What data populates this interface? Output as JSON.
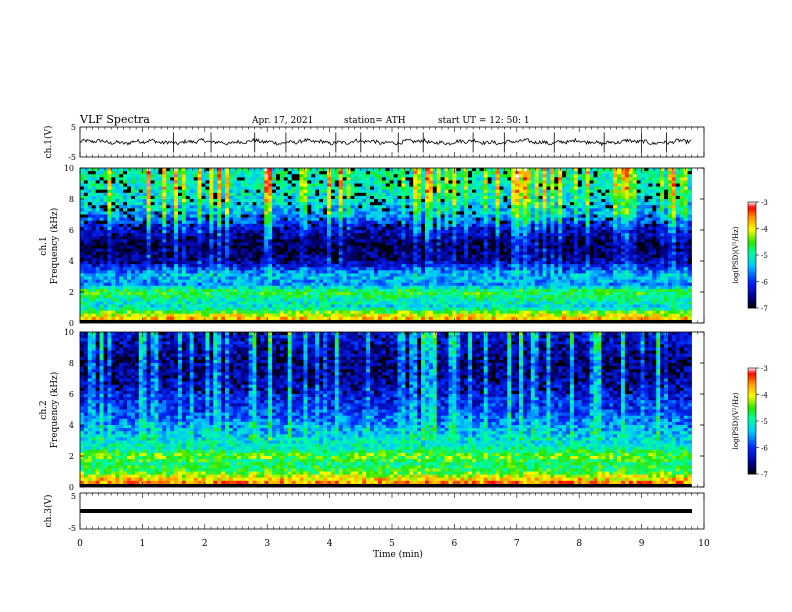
{
  "header": {
    "title": "VLF  Spectra",
    "date": "Apr. 17, 2021",
    "station": "station= ATH",
    "start": "start  UT  =     12: 50: 1"
  },
  "chart_data": [
    {
      "type": "line",
      "name": "ch1-waveform",
      "ylabel": "ch.1(V)",
      "ylim": [
        -5,
        5
      ],
      "yticks": [
        "5",
        "-5"
      ],
      "xlim": [
        0,
        10
      ],
      "data_xlim": [
        0,
        9.8
      ],
      "baseline": 0,
      "amplitude": 1.0,
      "spike_times": [
        1.5,
        2.1,
        2.8,
        3.3,
        4.1,
        4.5,
        5.1,
        5.5,
        6.3,
        6.8,
        7.6,
        8.4,
        9.0,
        9.4
      ],
      "color": "#000000"
    },
    {
      "type": "heatmap",
      "name": "ch1-spectrogram",
      "ylabel": "ch.1\nFrequency  (kHz)",
      "ylabel_lines": [
        "ch.1",
        "Frequency  (kHz)"
      ],
      "ylim": [
        0,
        10
      ],
      "yticks": [
        "0",
        "2",
        "4",
        "6",
        "8",
        "10"
      ],
      "xlim": [
        0,
        10
      ],
      "data_xlim": [
        0,
        9.8
      ],
      "colorbar": {
        "label": "log(PSD)(V²/Hz)",
        "range": [
          -7,
          -3
        ],
        "ticks": [
          "-3",
          "-4",
          "-5",
          "-6",
          "-7"
        ]
      },
      "bands": [
        {
          "freq_khz": 0.3,
          "level": -3.8
        },
        {
          "freq_khz": 0.6,
          "level": -4.2
        },
        {
          "freq_khz": 1.0,
          "level": -5.2
        },
        {
          "freq_khz": 1.5,
          "level": -5.0
        },
        {
          "freq_khz": 2.0,
          "level": -4.6
        },
        {
          "freq_khz": 2.5,
          "level": -5.6
        },
        {
          "freq_khz": 3.0,
          "level": -5.4
        },
        {
          "freq_khz": 4.0,
          "level": -6.6
        },
        {
          "freq_khz": 5.0,
          "level": -6.8
        },
        {
          "freq_khz": 6.0,
          "level": -6.4
        },
        {
          "freq_khz": 7.0,
          "level": -5.5
        },
        {
          "freq_khz": 8.0,
          "level": -5.2
        },
        {
          "freq_khz": 9.0,
          "level": -5.0
        },
        {
          "freq_khz": 10.0,
          "level": -5.0
        }
      ]
    },
    {
      "type": "heatmap",
      "name": "ch2-spectrogram",
      "ylabel": "ch.2\nFrequency  (kHz)",
      "ylabel_lines": [
        "ch.2",
        "Frequency  (kHz)"
      ],
      "ylim": [
        0,
        10
      ],
      "yticks": [
        "0",
        "2",
        "4",
        "6",
        "8",
        "10"
      ],
      "xlim": [
        0,
        10
      ],
      "data_xlim": [
        0,
        9.8
      ],
      "colorbar": {
        "label": "log(PSD)(V²/Hz)",
        "range": [
          -7,
          -3
        ],
        "ticks": [
          "-3",
          "-4",
          "-5",
          "-6",
          "-7"
        ]
      },
      "bands": [
        {
          "freq_khz": 0.3,
          "level": -3.6
        },
        {
          "freq_khz": 0.6,
          "level": -4.0
        },
        {
          "freq_khz": 1.0,
          "level": -4.6
        },
        {
          "freq_khz": 1.5,
          "level": -4.8
        },
        {
          "freq_khz": 2.0,
          "level": -4.4
        },
        {
          "freq_khz": 2.5,
          "level": -5.0
        },
        {
          "freq_khz": 3.0,
          "level": -5.2
        },
        {
          "freq_khz": 4.0,
          "level": -5.6
        },
        {
          "freq_khz": 5.0,
          "level": -6.0
        },
        {
          "freq_khz": 6.0,
          "level": -6.2
        },
        {
          "freq_khz": 7.0,
          "level": -6.5
        },
        {
          "freq_khz": 8.0,
          "level": -6.6
        },
        {
          "freq_khz": 9.0,
          "level": -6.4
        },
        {
          "freq_khz": 10.0,
          "level": -6.2
        }
      ]
    },
    {
      "type": "line",
      "name": "ch3-waveform",
      "ylabel": "ch.3(V)",
      "ylim": [
        -5,
        5
      ],
      "yticks": [
        "5",
        "-5"
      ],
      "xlim": [
        0,
        10
      ],
      "data_xlim": [
        0,
        9.8
      ],
      "baseline": 0,
      "amplitude": 0,
      "color": "#000000"
    }
  ],
  "xaxis": {
    "label": "Time  (min)",
    "ticks": [
      "0",
      "1",
      "2",
      "3",
      "4",
      "5",
      "6",
      "7",
      "8",
      "9",
      "10"
    ]
  }
}
